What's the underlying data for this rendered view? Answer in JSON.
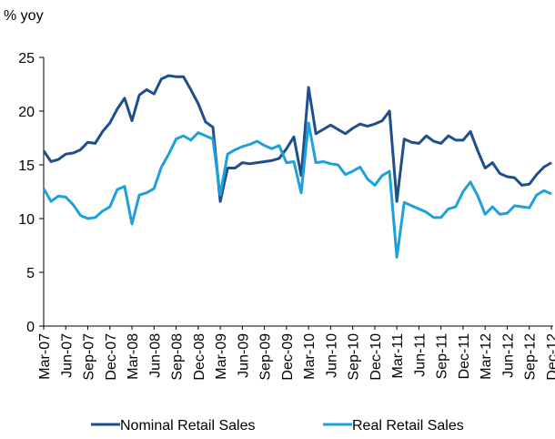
{
  "chart_data": {
    "type": "line",
    "y_label": "% yoy",
    "categories": [
      "Mar-07",
      null,
      null,
      "Jun-07",
      null,
      null,
      "Sep-07",
      null,
      null,
      "Dec-07",
      null,
      null,
      "Mar-08",
      null,
      null,
      "Jun-08",
      null,
      null,
      "Sep-08",
      null,
      null,
      "Dec-08",
      null,
      null,
      "Mar-09",
      null,
      null,
      "Jun-09",
      null,
      null,
      "Sep-09",
      null,
      null,
      "Dec-09",
      null,
      null,
      "Mar-10",
      null,
      null,
      "Jun-10",
      null,
      null,
      "Sep-10",
      null,
      null,
      "Dec-10",
      null,
      null,
      "Mar-11",
      null,
      null,
      "Jun-11",
      null,
      null,
      "Sep-11",
      null,
      null,
      "Dec-11",
      null,
      null,
      "Mar-12",
      null,
      null,
      "Jun-12",
      null,
      null,
      "Sep-12",
      null,
      null,
      "Dec-12"
    ],
    "series": [
      {
        "name": "Nominal Retail Sales",
        "color": "#1f4e8c",
        "values": [
          16.3,
          15.3,
          15.5,
          16.0,
          16.1,
          16.4,
          17.1,
          17.0,
          18.1,
          18.9,
          20.2,
          21.2,
          19.1,
          21.5,
          22.0,
          21.6,
          23.0,
          23.3,
          23.2,
          23.2,
          22.0,
          20.7,
          19.0,
          18.5,
          11.6,
          14.7,
          14.7,
          15.2,
          15.1,
          15.2,
          15.3,
          15.4,
          15.6,
          16.5,
          17.6,
          14.0,
          22.2,
          17.9,
          18.3,
          18.7,
          18.3,
          17.9,
          18.4,
          18.8,
          18.6,
          18.8,
          19.1,
          20.0,
          11.6,
          17.4,
          17.1,
          17.0,
          17.7,
          17.2,
          17.0,
          17.7,
          17.3,
          17.3,
          18.1,
          16.3,
          14.7,
          15.2,
          14.2,
          13.9,
          13.8,
          13.1,
          13.2,
          14.1,
          14.8,
          15.2
        ]
      },
      {
        "name": "Real Retail Sales",
        "color": "#1ea0dc",
        "values": [
          12.8,
          11.6,
          12.1,
          12.0,
          11.3,
          10.3,
          10.0,
          10.1,
          10.7,
          11.1,
          12.7,
          13.0,
          9.5,
          12.2,
          12.4,
          12.8,
          14.8,
          16.0,
          17.4,
          17.7,
          17.3,
          18.0,
          17.7,
          17.4,
          12.2,
          16.0,
          16.4,
          16.7,
          16.9,
          17.2,
          16.8,
          16.5,
          16.8,
          15.2,
          15.3,
          12.4,
          18.9,
          15.2,
          15.3,
          15.1,
          15.0,
          14.1,
          14.4,
          14.8,
          13.7,
          13.1,
          14.0,
          14.4,
          6.4,
          11.5,
          11.2,
          10.9,
          10.6,
          10.1,
          10.1,
          10.9,
          11.1,
          12.5,
          13.4,
          12.1,
          10.4,
          11.1,
          10.4,
          10.5,
          11.2,
          11.1,
          11.0,
          12.2,
          12.6,
          12.3
        ]
      }
    ],
    "ylim": [
      0,
      25
    ],
    "yticks": [
      0,
      5,
      10,
      15,
      20,
      25
    ],
    "grid": false,
    "legend": "bottom"
  }
}
